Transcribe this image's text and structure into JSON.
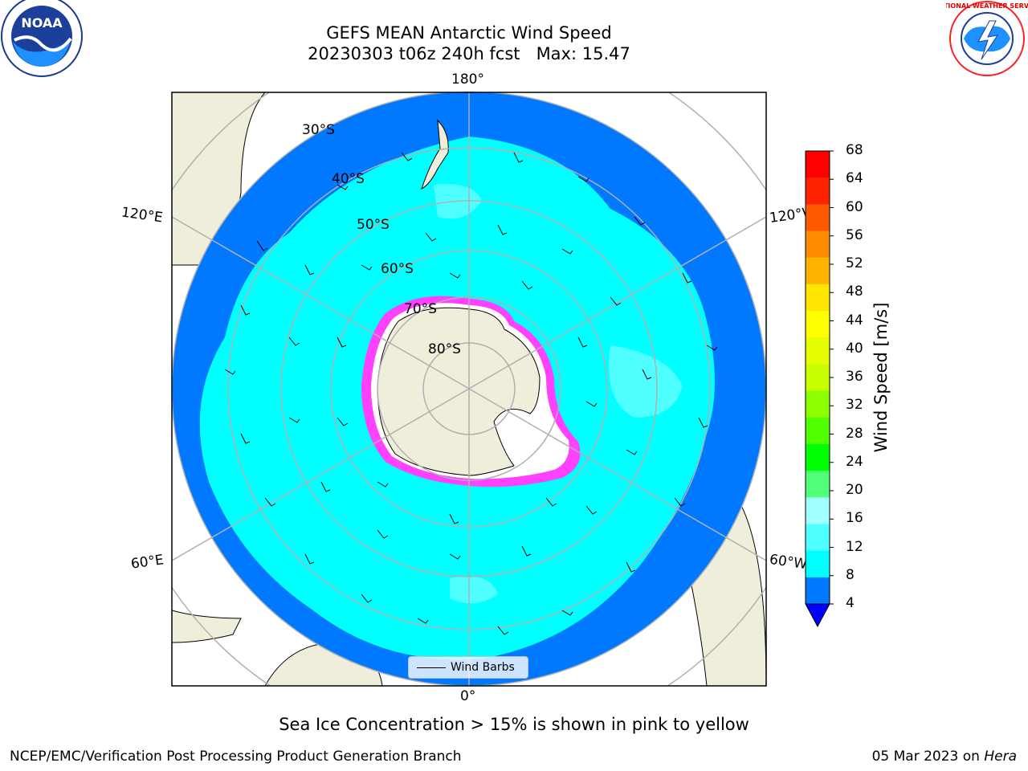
{
  "title": {
    "line1": "GEFS MEAN Antarctic Wind Speed",
    "line2": "20230303 t06z 240h fcst   Max: 15.47"
  },
  "colorbar": {
    "label": "Wind Speed [m/s]",
    "ticks": [
      "68",
      "64",
      "60",
      "56",
      "52",
      "48",
      "44",
      "40",
      "36",
      "32",
      "28",
      "24",
      "20",
      "16",
      "12",
      "8",
      "4"
    ],
    "colors": [
      "#ff0000",
      "#ff2400",
      "#ff5a00",
      "#ff8c00",
      "#ffb400",
      "#ffe600",
      "#ffff00",
      "#e6ff00",
      "#c8ff00",
      "#8cff00",
      "#50ff00",
      "#00ff00",
      "#50ff78",
      "#a0ffff",
      "#50ffff",
      "#00ffff",
      "#0078ff"
    ],
    "under_color": "#0000ff"
  },
  "map": {
    "lat_labels": [
      "30°S",
      "40°S",
      "50°S",
      "60°S",
      "70°S",
      "80°S"
    ],
    "lon_labels": {
      "top": "180°",
      "bottom": "0°",
      "upper_left": "120°E",
      "upper_right": "120°W",
      "lower_left": "60°E",
      "lower_right": "60°W"
    },
    "legend_label": "Wind Barbs",
    "colors": {
      "ocean_low": "#0078ff",
      "ocean_mid": "#00ffff",
      "ocean_high": "#50ffff",
      "land": "#efeedb",
      "ice_edge": "#ff40ff"
    }
  },
  "logos": {
    "left": "NOAA",
    "right": "NATIONAL WEATHER SERVICE"
  },
  "note": "Sea Ice Concentration > 15% is shown in pink to yellow",
  "footer": {
    "left": "NCEP/EMC/Verification Post Processing Product Generation Branch",
    "right_prefix": "05 Mar 2023 on ",
    "right_italic": "Hera"
  }
}
